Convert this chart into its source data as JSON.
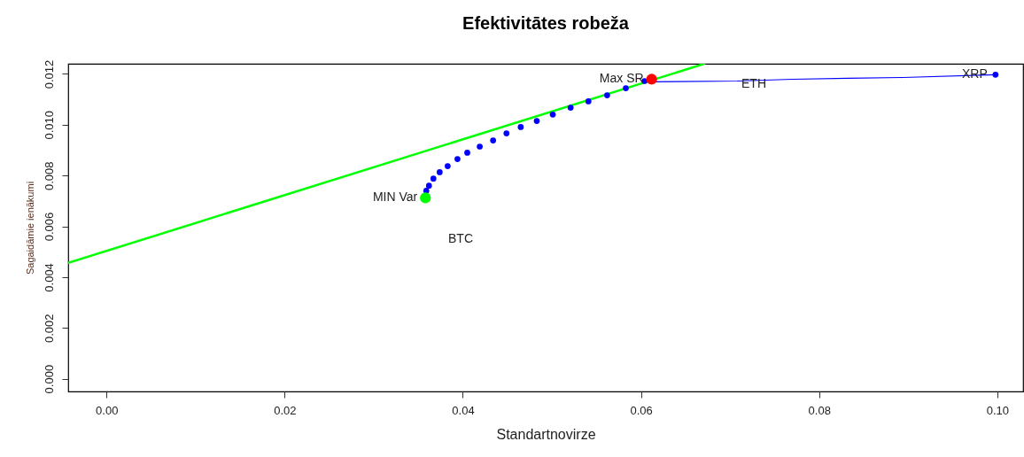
{
  "chart_data": {
    "type": "scatter",
    "title": "Efektivitātes robeža",
    "xlabel": "Standartnovirze",
    "ylabel": "Sagaidāmie ienākumi",
    "xlim": [
      -0.0043,
      0.1029
    ],
    "ylim": [
      -0.0005,
      0.0124
    ],
    "xticks": [
      {
        "value": 0,
        "label": "0.00"
      },
      {
        "value": 0.02,
        "label": "0.02"
      },
      {
        "value": 0.04,
        "label": "0.04"
      },
      {
        "value": 0.06,
        "label": "0.06"
      },
      {
        "value": 0.08,
        "label": "0.08"
      },
      {
        "value": 0.1,
        "label": "0.10"
      }
    ],
    "yticks": [
      {
        "value": 0,
        "label": "0.000"
      },
      {
        "value": 0.002,
        "label": "0.002"
      },
      {
        "value": 0.004,
        "label": "0.004"
      },
      {
        "value": 0.006,
        "label": "0.006"
      },
      {
        "value": 0.008,
        "label": "0.008"
      },
      {
        "value": 0.01,
        "label": "0.010"
      },
      {
        "value": 0.012,
        "label": "0.012"
      }
    ],
    "grid": false,
    "series": [
      {
        "type": "line",
        "color": "#0000ff",
        "x": [
          0.0612,
          0.0708,
          0.077,
          0.0832,
          0.0894,
          0.0998
        ],
        "values": [
          0.01169,
          0.01172,
          0.01179,
          0.01183,
          0.01186,
          0.01197
        ]
      },
      {
        "type": "line",
        "color": "#00ff00",
        "x": [
          -0.0043,
          0.0671
        ],
        "values": [
          0.00456,
          0.0124
        ]
      },
      {
        "type": "scatter",
        "color": "#0000ff",
        "x": [
          0.0359,
          0.0362,
          0.0367,
          0.0374,
          0.0383,
          0.0394,
          0.0405,
          0.0419,
          0.0434,
          0.0449,
          0.0465,
          0.0483,
          0.0501,
          0.0521,
          0.0541,
          0.0562,
          0.0583,
          0.0604,
          0.0998
        ],
        "values": [
          0.0074,
          0.0076,
          0.00788,
          0.00813,
          0.00837,
          0.00865,
          0.0089,
          0.00914,
          0.00938,
          0.00966,
          0.00991,
          0.01015,
          0.0104,
          0.01067,
          0.01092,
          0.01116,
          0.01144,
          0.01172,
          0.01197
        ]
      },
      {
        "type": "scatter",
        "color": "#00ff00",
        "x": [
          0.0358
        ],
        "values": [
          0.00712
        ]
      },
      {
        "type": "scatter",
        "color": "#ff0000",
        "x": [
          0.0612
        ],
        "values": [
          0.01179
        ]
      }
    ],
    "annotations": [
      {
        "text": "MIN Var",
        "x": 0.0358,
        "y": 0.00712
      },
      {
        "text": "Max SR",
        "x": 0.0612,
        "y": 0.01179
      },
      "BTC",
      "ETH",
      {
        "text": "XRP",
        "x": 0.0998,
        "y": 0.01197
      }
    ]
  }
}
